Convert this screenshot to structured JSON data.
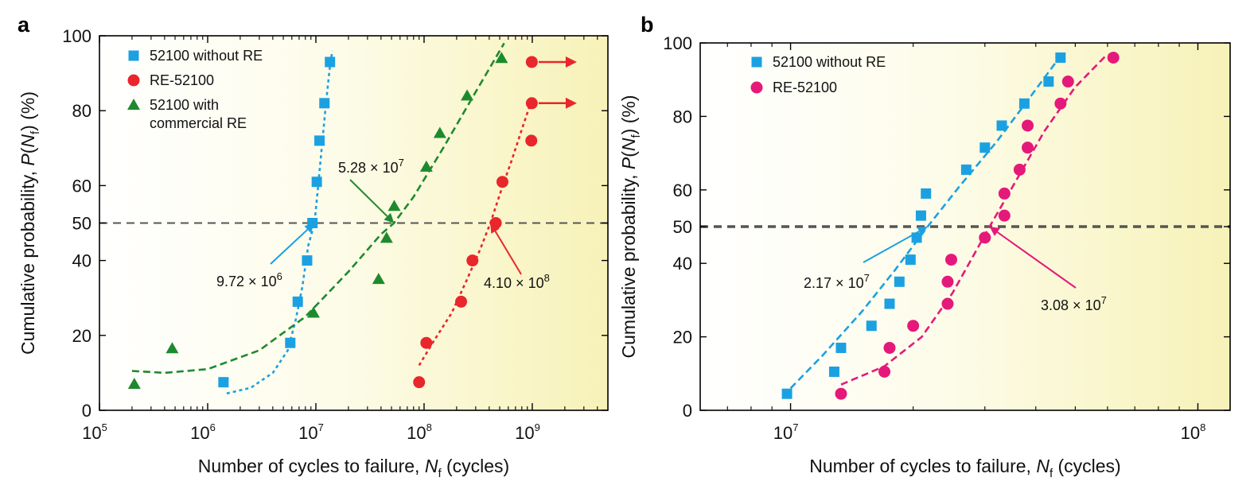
{
  "chart_data": [
    {
      "panel": "a",
      "type": "scatter",
      "xscale": "log",
      "xlim": [
        100000,
        5000000000
      ],
      "ylim": [
        0,
        100
      ],
      "xticks": [
        {
          "value": 100000,
          "base": "10",
          "exp": "5"
        },
        {
          "value": 1000000,
          "base": "10",
          "exp": "6"
        },
        {
          "value": 10000000,
          "base": "10",
          "exp": "7"
        },
        {
          "value": 100000000,
          "base": "10",
          "exp": "8"
        },
        {
          "value": 1000000000,
          "base": "10",
          "exp": "9"
        }
      ],
      "yticks": [
        0,
        20,
        40,
        50,
        60,
        80,
        100
      ],
      "xlabel": {
        "main": "Number of cycles to failure, ",
        "var": "N",
        "sub": "f",
        "unit": " (cycles)"
      },
      "ylabel": {
        "main": "Cumulative probability, ",
        "var": "P",
        "open": "(",
        "var2": "N",
        "sub": "f",
        "unit": ") (%)"
      },
      "reference_line": 50,
      "series": [
        {
          "name": "52100 without RE",
          "color": "#1ba1e2",
          "marker": "square",
          "points": [
            [
              1400000,
              7.5
            ],
            [
              5800000,
              18
            ],
            [
              6800000,
              29
            ],
            [
              8300000,
              40
            ],
            [
              9300000,
              50
            ],
            [
              10200000,
              61
            ],
            [
              10800000,
              72
            ],
            [
              12000000,
              82
            ],
            [
              13500000,
              93
            ]
          ],
          "fit": [
            [
              1500000,
              4.5
            ],
            [
              2500000,
              6
            ],
            [
              4000000,
              10
            ],
            [
              5500000,
              16
            ],
            [
              6500000,
              24
            ],
            [
              7500000,
              33
            ],
            [
              8500000,
              44
            ],
            [
              9720000,
              50
            ],
            [
              10500000,
              60
            ],
            [
              11500000,
              72
            ],
            [
              12500000,
              83
            ],
            [
              13500000,
              92
            ],
            [
              14200000,
              96
            ]
          ]
        },
        {
          "name": "RE-52100",
          "color": "#e8262b",
          "marker": "circle",
          "points": [
            [
              90000000,
              7.5
            ],
            [
              105000000,
              18
            ],
            [
              220000000,
              29
            ],
            [
              280000000,
              40
            ],
            [
              460000000,
              50
            ],
            [
              530000000,
              61
            ],
            [
              980000000,
              72
            ],
            [
              990000000,
              82
            ],
            [
              990000000,
              93
            ]
          ],
          "fit": [
            [
              90000000,
              12
            ],
            [
              120000000,
              18
            ],
            [
              180000000,
              26
            ],
            [
              250000000,
              35
            ],
            [
              330000000,
              43
            ],
            [
              410000000,
              50
            ],
            [
              520000000,
              59
            ],
            [
              650000000,
              67
            ],
            [
              800000000,
              75
            ],
            [
              990000000,
              83
            ]
          ],
          "arrows_at_y": [
            82,
            93
          ]
        },
        {
          "name": "52100 with commercial RE",
          "color": "#1e8a2e",
          "marker": "triangle",
          "points": [
            [
              210000,
              7
            ],
            [
              470000,
              16.5
            ],
            [
              9500000,
              26
            ],
            [
              38000000,
              35
            ],
            [
              45000000,
              46
            ],
            [
              53000000,
              54.5
            ],
            [
              105000000,
              65
            ],
            [
              140000000,
              74
            ],
            [
              250000000,
              84
            ],
            [
              520000000,
              94
            ]
          ],
          "fit": [
            [
              200000,
              10.5
            ],
            [
              400000,
              10
            ],
            [
              1000000,
              11
            ],
            [
              3000000,
              16
            ],
            [
              8000000,
              25
            ],
            [
              20000000,
              37
            ],
            [
              40000000,
              47
            ],
            [
              52800000,
              50
            ],
            [
              80000000,
              57
            ],
            [
              150000000,
              70
            ],
            [
              300000000,
              85
            ],
            [
              550000000,
              98
            ]
          ]
        }
      ],
      "legend": [
        {
          "line1": "52100 without RE",
          "marker": "square",
          "color": "#1ba1e2"
        },
        {
          "line1": "RE-52100",
          "marker": "circle",
          "color": "#e8262b"
        },
        {
          "line1": "52100 with",
          "line2": "commercial RE",
          "marker": "triangle",
          "color": "#1e8a2e"
        }
      ],
      "annotations": [
        {
          "mantissa": "9.72",
          "times": " × ",
          "base": "10",
          "exp": "6",
          "color": "#1ba1e2",
          "target": [
            9720000,
            50
          ]
        },
        {
          "mantissa": "5.28",
          "times": " × ",
          "base": "10",
          "exp": "7",
          "color": "#1e8a2e",
          "target": [
            52800000,
            50
          ]
        },
        {
          "mantissa": "4.10",
          "times": " × ",
          "base": "10",
          "exp": "8",
          "color": "#e8262b",
          "target": [
            410000000,
            50
          ]
        }
      ]
    },
    {
      "panel": "b",
      "type": "scatter",
      "xscale": "log",
      "xlim": [
        6000000,
        120000000
      ],
      "ylim": [
        0,
        100
      ],
      "xticks": [
        {
          "value": 10000000,
          "base": "10",
          "exp": "7"
        },
        {
          "value": 100000000,
          "base": "10",
          "exp": "8"
        }
      ],
      "yticks": [
        0,
        20,
        40,
        50,
        60,
        80,
        100
      ],
      "xlabel": {
        "main": "Number of cycles to failure, ",
        "var": "N",
        "sub": "f",
        "unit": " (cycles)"
      },
      "ylabel": {
        "main": "Cumulative probability, ",
        "var": "P",
        "open": "(",
        "var2": "N",
        "sub": "f",
        "unit": ") (%)"
      },
      "reference_line": 50,
      "series": [
        {
          "name": "52100 without RE",
          "color": "#1ba1e2",
          "marker": "square",
          "points": [
            [
              9800000,
              4.5
            ],
            [
              12800000,
              10.5
            ],
            [
              13300000,
              17
            ],
            [
              15800000,
              23
            ],
            [
              17500000,
              29
            ],
            [
              18500000,
              35
            ],
            [
              19700000,
              41
            ],
            [
              20400000,
              47
            ],
            [
              20900000,
              53
            ],
            [
              21500000,
              59
            ],
            [
              27000000,
              65.5
            ],
            [
              30000000,
              71.5
            ],
            [
              33000000,
              77.5
            ],
            [
              37500000,
              83.5
            ],
            [
              43000000,
              89.5
            ],
            [
              46000000,
              96
            ]
          ],
          "fit": [
            [
              10000000,
              6
            ],
            [
              12000000,
              15
            ],
            [
              15000000,
              27
            ],
            [
              18000000,
              38
            ],
            [
              21700000,
              50
            ],
            [
              26000000,
              61
            ],
            [
              32000000,
              73
            ],
            [
              38000000,
              84
            ],
            [
              45000000,
              95
            ]
          ]
        },
        {
          "name": "RE-52100",
          "color": "#e5197a",
          "marker": "circle",
          "points": [
            [
              13300000,
              4.5
            ],
            [
              17000000,
              10.5
            ],
            [
              17500000,
              17
            ],
            [
              20000000,
              23
            ],
            [
              24300000,
              29
            ],
            [
              24300000,
              35
            ],
            [
              24800000,
              41
            ],
            [
              30000000,
              47
            ],
            [
              33500000,
              53
            ],
            [
              33500000,
              59
            ],
            [
              36500000,
              65.5
            ],
            [
              38200000,
              71.5
            ],
            [
              38200000,
              77.5
            ],
            [
              46000000,
              83.5
            ],
            [
              48000000,
              89.5
            ],
            [
              62000000,
              96
            ]
          ],
          "fit": [
            [
              13300000,
              7
            ],
            [
              17000000,
              12
            ],
            [
              21000000,
              20
            ],
            [
              25000000,
              32
            ],
            [
              30800000,
              50
            ],
            [
              36000000,
              63
            ],
            [
              42000000,
              76
            ],
            [
              50000000,
              88
            ],
            [
              60000000,
              97
            ]
          ]
        }
      ],
      "legend": [
        {
          "line1": "52100 without RE",
          "marker": "square",
          "color": "#1ba1e2"
        },
        {
          "line1": "RE-52100",
          "marker": "circle",
          "color": "#e5197a"
        }
      ],
      "annotations": [
        {
          "mantissa": "2.17",
          "times": " × ",
          "base": "10",
          "exp": "7",
          "color": "#1ba1e2",
          "target": [
            21700000,
            50
          ]
        },
        {
          "mantissa": "3.08",
          "times": " × ",
          "base": "10",
          "exp": "7",
          "color": "#e5197a",
          "target": [
            30800000,
            50
          ]
        }
      ]
    }
  ]
}
